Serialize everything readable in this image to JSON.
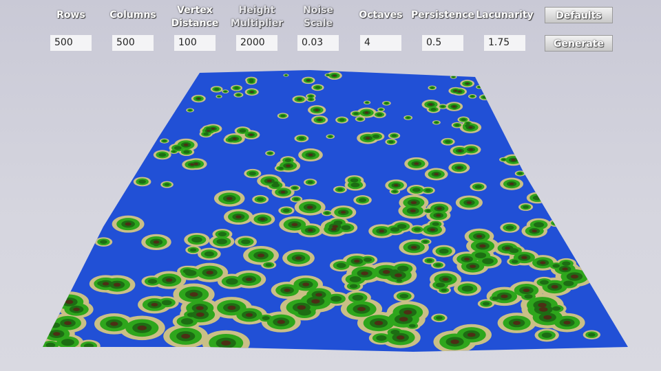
{
  "controls": [
    {
      "label": [
        "Rows"
      ],
      "value": "500"
    },
    {
      "label": [
        "Columns"
      ],
      "value": "500"
    },
    {
      "label": [
        "Vertex",
        "Distance"
      ],
      "value": "100"
    },
    {
      "label": [
        "Height",
        "Multiplier"
      ],
      "value": "2000"
    },
    {
      "label": [
        "Noise",
        "Scale"
      ],
      "value": "0.03"
    },
    {
      "label": [
        "Octaves"
      ],
      "value": "4"
    },
    {
      "label": [
        "Persistence"
      ],
      "value": "0.5"
    },
    {
      "label": [
        "Lacunarity"
      ],
      "value": "1.75"
    }
  ],
  "buttons": [
    "Defaults",
    "Generate"
  ]
}
